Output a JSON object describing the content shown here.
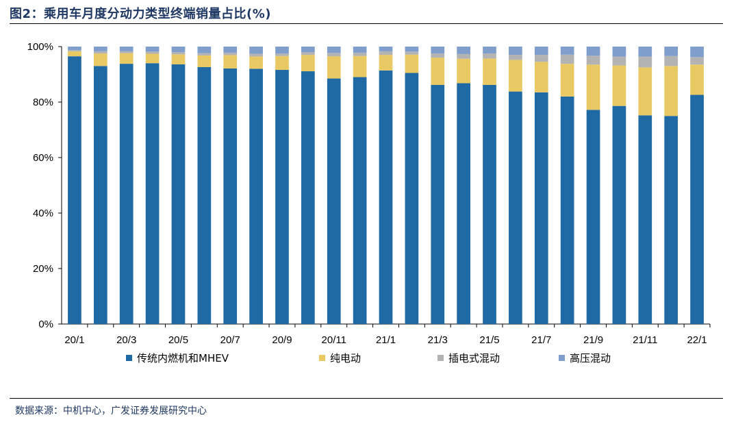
{
  "title": "图2：乘用车月度分动力类型终端销量占比(%)",
  "source": "数据来源：中机中心，广发证券发展研究中心",
  "chart_data": {
    "type": "bar",
    "stacked": true,
    "title": "图2：乘用车月度分动力类型终端销量占比(%)",
    "xlabel": "",
    "ylabel": "",
    "ylim": [
      0,
      100
    ],
    "yticks": [
      "0%",
      "20%",
      "40%",
      "60%",
      "80%",
      "100%"
    ],
    "categories": [
      "20/1",
      "20/2",
      "20/3",
      "20/4",
      "20/5",
      "20/6",
      "20/7",
      "20/8",
      "20/9",
      "20/10",
      "20/11",
      "20/12",
      "21/1",
      "21/2",
      "21/3",
      "21/4",
      "21/5",
      "21/6",
      "21/7",
      "21/8",
      "21/9",
      "21/10",
      "21/11",
      "21/12",
      "22/1"
    ],
    "xtick_labels": [
      "20/1",
      "",
      "20/3",
      "",
      "20/5",
      "",
      "20/7",
      "",
      "20/9",
      "",
      "20/11",
      "",
      "21/1",
      "",
      "21/3",
      "",
      "21/5",
      "",
      "21/7",
      "",
      "21/9",
      "",
      "21/11",
      "",
      "22/1"
    ],
    "series": [
      {
        "name": "传统内燃机和MHEV",
        "color": "#1f6aa5",
        "values": [
          96.5,
          93.0,
          93.8,
          94.0,
          93.6,
          92.6,
          92.1,
          92.0,
          91.6,
          91.1,
          88.5,
          89.0,
          91.4,
          90.5,
          86.2,
          86.8,
          86.2,
          83.8,
          83.5,
          82.0,
          77.2,
          78.6,
          75.2,
          75.0,
          82.6
        ]
      },
      {
        "name": "纯电动",
        "color": "#e8c964",
        "values": [
          1.8,
          4.5,
          3.8,
          3.4,
          3.6,
          4.2,
          4.8,
          4.4,
          5.0,
          5.9,
          8.0,
          7.6,
          5.6,
          6.6,
          9.8,
          8.8,
          9.5,
          11.4,
          11.0,
          11.8,
          16.3,
          14.6,
          17.3,
          18.0,
          10.9
        ]
      },
      {
        "name": "插电式混动",
        "color": "#b3b3b3",
        "values": [
          0.4,
          0.8,
          0.7,
          0.8,
          0.8,
          0.8,
          0.9,
          1.0,
          0.9,
          1.0,
          1.2,
          1.2,
          1.3,
          1.1,
          1.5,
          1.7,
          1.8,
          1.8,
          2.5,
          3.3,
          3.2,
          3.2,
          3.9,
          3.6,
          2.7
        ]
      },
      {
        "name": "高压混动",
        "color": "#7f9ecb",
        "values": [
          1.3,
          1.7,
          1.7,
          1.8,
          2.0,
          2.4,
          2.2,
          2.6,
          2.5,
          2.0,
          2.3,
          2.2,
          1.7,
          1.8,
          2.5,
          2.7,
          2.5,
          3.0,
          3.0,
          2.9,
          3.3,
          3.6,
          3.6,
          3.4,
          3.8
        ]
      }
    ],
    "grid": false,
    "legend_position": "bottom"
  }
}
